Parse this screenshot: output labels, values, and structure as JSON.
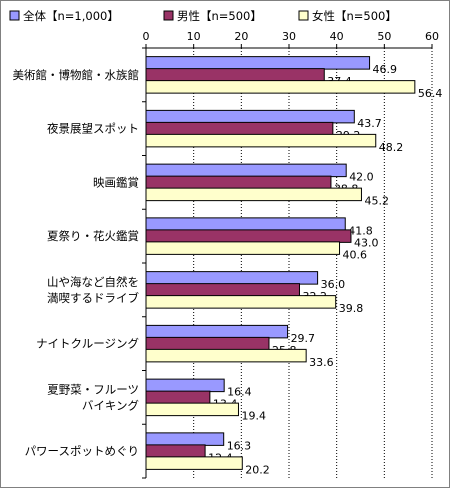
{
  "chart_data": {
    "type": "bar",
    "orientation": "horizontal",
    "title": "",
    "xlabel": "",
    "ylabel": "",
    "xlim": [
      0,
      60
    ],
    "x_ticks": [
      "0",
      "10",
      "20",
      "30",
      "40",
      "50",
      "60"
    ],
    "grid": true,
    "legend_position": "top",
    "categories": [
      [
        "美術館・博物館・水族館"
      ],
      [
        "夜景展望スポット"
      ],
      [
        "映画鑑賞"
      ],
      [
        "夏祭り・花火鑑賞"
      ],
      [
        "山や海など自然を",
        "満喫するドライブ"
      ],
      [
        "ナイトクルージング"
      ],
      [
        "夏野菜・フルーツ",
        "バイキング"
      ],
      [
        "パワースポットめぐり"
      ]
    ],
    "series": [
      {
        "name": "全体【n=1,000】",
        "color": "#9999ff",
        "values": [
          46.9,
          43.7,
          42.0,
          41.8,
          36.0,
          29.7,
          16.4,
          16.3
        ],
        "labels": [
          "46.9",
          "43.7",
          "42.0",
          "41.8",
          "36.0",
          "29.7",
          "16.4",
          "16.3"
        ]
      },
      {
        "name": "男性【n=500】",
        "color": "#993366",
        "values": [
          37.4,
          39.2,
          38.8,
          43.0,
          32.2,
          25.8,
          13.4,
          12.4
        ],
        "labels": [
          "37.4",
          "39.2",
          "38.8",
          "43.0",
          "32.2",
          "25.8",
          "13.4",
          "12.4"
        ]
      },
      {
        "name": "女性【n=500】",
        "color": "#ffffcc",
        "values": [
          56.4,
          48.2,
          45.2,
          40.6,
          39.8,
          33.6,
          19.4,
          20.2
        ],
        "labels": [
          "56.4",
          "48.2",
          "45.2",
          "40.6",
          "39.8",
          "33.6",
          "19.4",
          "20.2"
        ]
      }
    ]
  }
}
